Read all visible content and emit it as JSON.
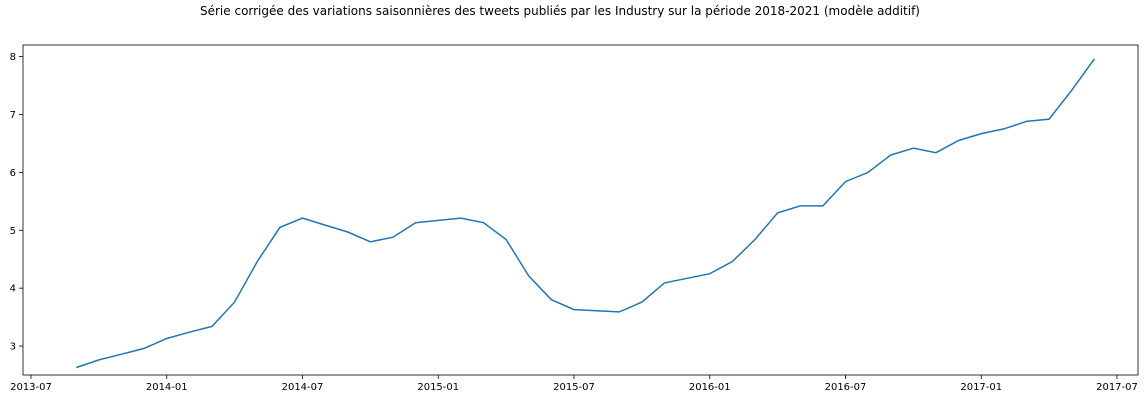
{
  "chart_data": {
    "type": "line",
    "title": "Série corrigée des variations saisonnières des tweets publiés par les Industry sur la période 2018-2021 (modèle additif)",
    "xlabel": "",
    "ylabel": "",
    "xlim": [
      "2013-07",
      "2017-07"
    ],
    "ylim": [
      2.5,
      8.2
    ],
    "grid": false,
    "x_ticks": [
      "2013-07",
      "2014-01",
      "2014-07",
      "2015-01",
      "2015-07",
      "2016-01",
      "2016-07",
      "2017-01",
      "2017-07"
    ],
    "y_ticks": [
      3,
      4,
      5,
      6,
      7,
      8
    ],
    "color": "#1f77b4",
    "series": [
      {
        "x": [
          "2013-09",
          "2013-10",
          "2013-11",
          "2013-12",
          "2014-01",
          "2014-02",
          "2014-03",
          "2014-04",
          "2014-05",
          "2014-06",
          "2014-07",
          "2014-08",
          "2014-09",
          "2014-10",
          "2014-11",
          "2014-12",
          "2015-01",
          "2015-02",
          "2015-03",
          "2015-04",
          "2015-05",
          "2015-06",
          "2015-07",
          "2015-08",
          "2015-09",
          "2015-10",
          "2015-11",
          "2015-12",
          "2016-01",
          "2016-02",
          "2016-03",
          "2016-04",
          "2016-05",
          "2016-06",
          "2016-07",
          "2016-08",
          "2016-09",
          "2016-10",
          "2016-11",
          "2016-12",
          "2017-01",
          "2017-02",
          "2017-03",
          "2017-04",
          "2017-05",
          "2017-06"
        ],
        "values": [
          2.63,
          2.76,
          2.86,
          2.96,
          3.13,
          3.24,
          3.34,
          3.76,
          4.46,
          5.05,
          5.21,
          5.09,
          4.97,
          4.8,
          4.88,
          5.13,
          5.17,
          5.21,
          5.13,
          4.84,
          4.21,
          3.8,
          3.63,
          3.61,
          3.59,
          3.76,
          4.09,
          4.17,
          4.25,
          4.46,
          4.84,
          5.3,
          5.42,
          5.42,
          5.84,
          6.0,
          6.3,
          6.42,
          6.34,
          6.55,
          6.67,
          6.75,
          6.88,
          6.92,
          7.42,
          7.96
        ]
      }
    ]
  }
}
